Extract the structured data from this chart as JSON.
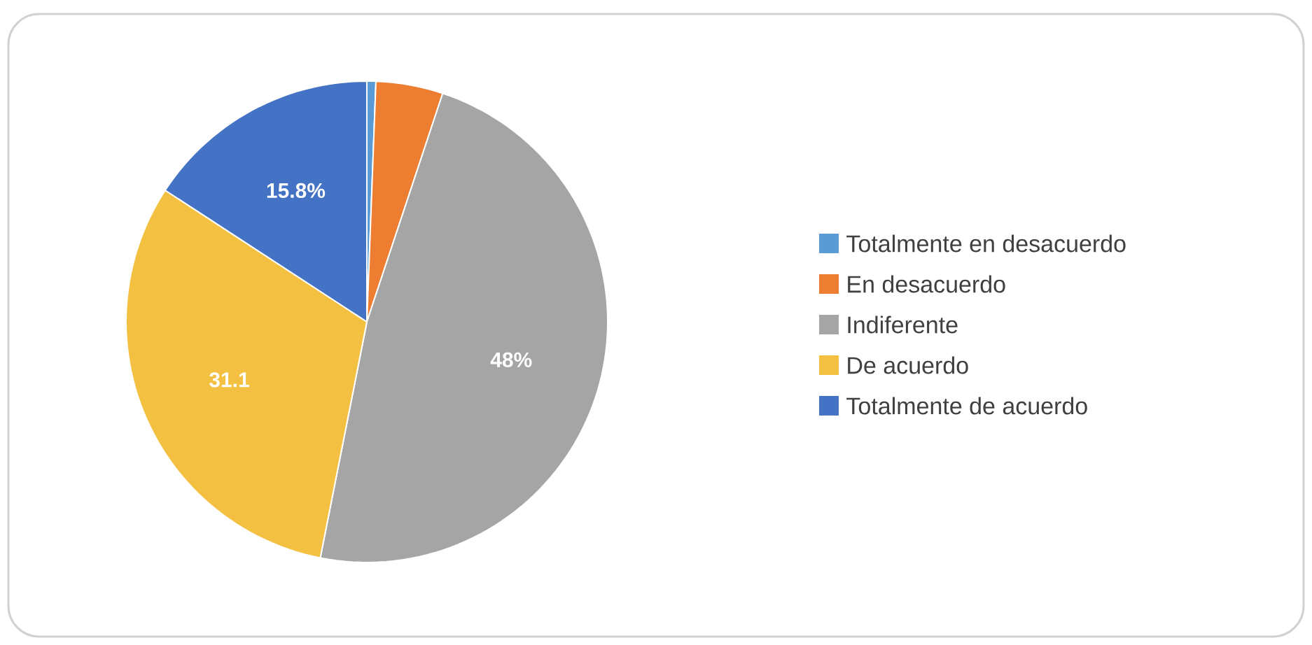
{
  "chart_data": {
    "type": "pie",
    "categories": [
      "Totalmente en desacuerdo",
      "En desacuerdo",
      "Indiferente",
      "De acuerdo",
      "Totalmente de acuerdo"
    ],
    "values": [
      0.6,
      4.5,
      48,
      31.1,
      15.8
    ],
    "value_labels": [
      null,
      null,
      "48%",
      "31.1",
      "15.8%"
    ],
    "colors": [
      "#5b9bd5",
      "#ed7d31",
      "#a5a5a5",
      "#f4c042",
      "#4472c4"
    ],
    "legend": "right"
  }
}
